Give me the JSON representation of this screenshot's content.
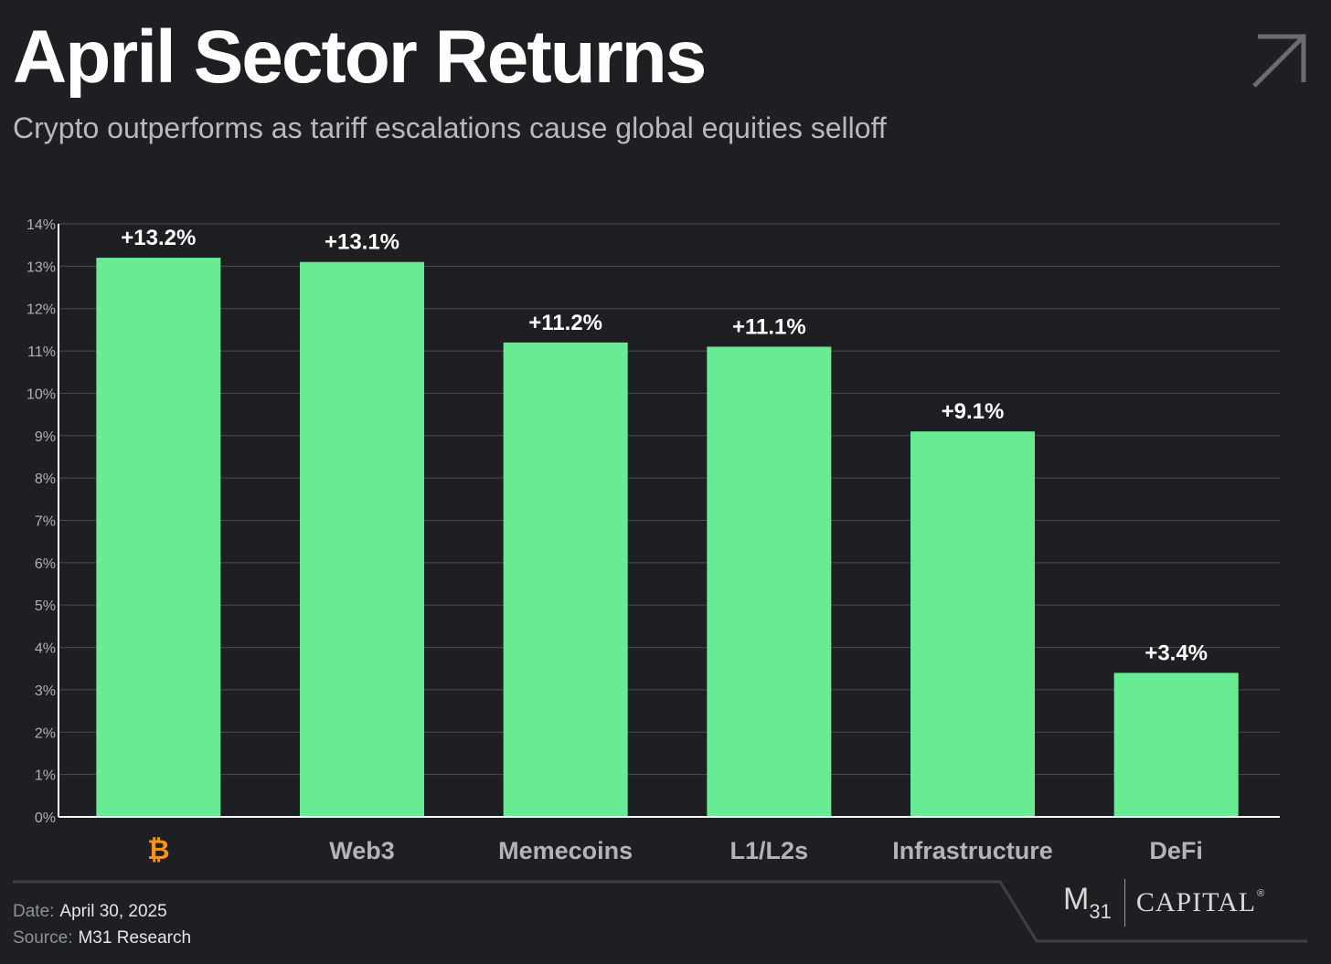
{
  "header": {
    "title": "April Sector Returns",
    "subtitle": "Crypto outperforms as tariff escalations cause global equities selloff",
    "corner_icon": "arrow-up-right-icon"
  },
  "chart_data": {
    "type": "bar",
    "categories": [
      "₿",
      "Web3",
      "Memecoins",
      "L1/L2s",
      "Infrastructure",
      "DeFi"
    ],
    "values": [
      13.2,
      13.1,
      11.2,
      11.1,
      9.1,
      3.4
    ],
    "data_labels": [
      "+13.2%",
      "+13.1%",
      "+11.2%",
      "+11.1%",
      "+9.1%",
      "+3.4%"
    ],
    "yticks": [
      "0%",
      "1%",
      "2%",
      "3%",
      "4%",
      "5%",
      "6%",
      "7%",
      "8%",
      "9%",
      "10%",
      "11%",
      "12%",
      "13%",
      "14%"
    ],
    "ylim": [
      0,
      14
    ],
    "grid": true,
    "colors": {
      "bar": "#69eb94",
      "bitcoin": "#f7931a",
      "category_label": "#b2b4b8",
      "grid": "#4a4c50",
      "axis": "#ffffff",
      "tick": "#b0b2b5"
    }
  },
  "footer": {
    "date_label": "Date:",
    "date_value": "April 30, 2025",
    "source_label": "Source:",
    "source_value": "M31 Research"
  },
  "logo": {
    "m": "M",
    "num": "31",
    "capital": "CAPITAL",
    "reg": "®"
  }
}
